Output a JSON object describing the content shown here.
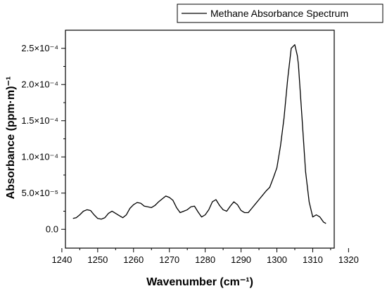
{
  "chart_data": {
    "type": "line",
    "xlabel": "Wavenumber (cm⁻¹)",
    "ylabel": "Absorbance (ppm·m)⁻¹",
    "xlim": [
      1241,
      1316
    ],
    "ylim": [
      -2.6e-05,
      0.000275
    ],
    "grid": false,
    "legend_position": "top-right",
    "x_ticks": [
      1240,
      1250,
      1260,
      1270,
      1280,
      1290,
      1300,
      1310,
      1320
    ],
    "x_tick_labels": [
      "1240",
      "1250",
      "1260",
      "1270",
      "1280",
      "1290",
      "1300",
      "1310",
      "1320"
    ],
    "y_ticks": [
      0,
      5e-05,
      0.0001,
      0.00015,
      0.0002,
      0.00025
    ],
    "y_tick_labels": [
      "0.0",
      "5.0×10⁻⁵",
      "1.0×10⁻⁴",
      "1.5×10⁻⁴",
      "2.0×10⁻⁴",
      "2.5×10⁻⁴"
    ],
    "series": [
      {
        "name": "Methane Absorbance Spectrum",
        "color": "#000000",
        "x": [
          1243.1,
          1244,
          1245,
          1246,
          1247,
          1248,
          1249,
          1250,
          1251,
          1252,
          1253,
          1254,
          1255,
          1256,
          1257,
          1258,
          1259,
          1260,
          1261,
          1262,
          1263,
          1264,
          1265,
          1266,
          1267,
          1268,
          1269,
          1270,
          1271,
          1272,
          1273,
          1274,
          1275,
          1276,
          1277,
          1278,
          1279,
          1280,
          1281,
          1282,
          1283,
          1284,
          1285,
          1286,
          1287,
          1288,
          1289,
          1290,
          1291,
          1292,
          1293,
          1294,
          1295,
          1296,
          1297,
          1298,
          1299,
          1300,
          1301,
          1302,
          1303,
          1304,
          1305,
          1305.7,
          1306,
          1307,
          1308,
          1309,
          1310,
          1311,
          1312,
          1313,
          1313.7
        ],
        "y": [
          1.5e-05,
          1.6e-05,
          2e-05,
          2.5e-05,
          2.7e-05,
          2.6e-05,
          2e-05,
          1.5e-05,
          1.4e-05,
          1.6e-05,
          2.2e-05,
          2.5e-05,
          2.2e-05,
          1.9e-05,
          1.6e-05,
          2e-05,
          2.9e-05,
          3.4e-05,
          3.7e-05,
          3.6e-05,
          3.2e-05,
          3.1e-05,
          3e-05,
          3.3e-05,
          3.8e-05,
          4.2e-05,
          4.6e-05,
          4.4e-05,
          4e-05,
          3e-05,
          2.3e-05,
          2.5e-05,
          2.7e-05,
          3.1e-05,
          3.2e-05,
          2.4e-05,
          1.7e-05,
          2e-05,
          2.7e-05,
          3.8e-05,
          4.1e-05,
          3.3e-05,
          2.7e-05,
          2.5e-05,
          3.2e-05,
          3.8e-05,
          3.4e-05,
          2.6e-05,
          2.3e-05,
          2.3e-05,
          2.9e-05,
          3.5e-05,
          4.1e-05,
          4.7e-05,
          5.3e-05,
          5.8e-05,
          7.1e-05,
          8.5e-05,
          0.000115,
          0.000154,
          0.000207,
          0.00025,
          0.000255,
          0.00024,
          0.000228,
          0.000155,
          8e-05,
          3.8e-05,
          1.7e-05,
          2e-05,
          1.7e-05,
          1e-05,
          8e-06
        ]
      }
    ]
  }
}
